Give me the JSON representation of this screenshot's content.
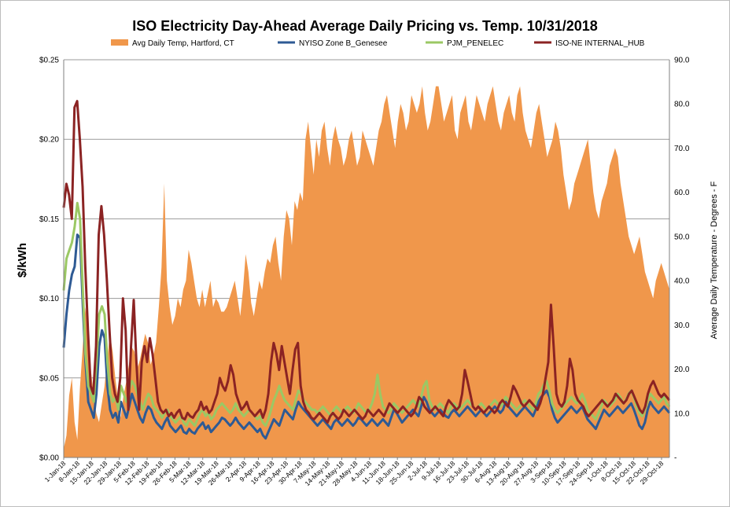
{
  "chart_data": {
    "type": "line",
    "title": "ISO Electricity Day-Ahead Average Daily Pricing vs. Temp. 10/31/2018",
    "ylabel": "$/kWh",
    "y2label": "Average Daily Temperature - Degrees - F",
    "ylim": [
      0,
      0.25
    ],
    "y2lim": [
      0,
      90
    ],
    "yticks": [
      "$0.00",
      "$0.05",
      "$0.10",
      "$0.15",
      "$0.20",
      "$0.25"
    ],
    "y2ticks": [
      "-",
      "10.0",
      "20.0",
      "30.0",
      "40.0",
      "50.0",
      "60.0",
      "70.0",
      "80.0",
      "90.0"
    ],
    "grid": true,
    "legend_position": "top",
    "xticks": [
      "1-Jan-18",
      "8-Jan-18",
      "15-Jan-18",
      "22-Jan-18",
      "29-Jan-18",
      "5-Feb-18",
      "12-Feb-18",
      "19-Feb-18",
      "26-Feb-18",
      "5-Mar-18",
      "12-Mar-18",
      "19-Mar-18",
      "26-Mar-18",
      "2-Apr-18",
      "9-Apr-18",
      "16-Apr-18",
      "23-Apr-18",
      "30-Apr-18",
      "7-May-18",
      "14-May-18",
      "21-May-18",
      "28-May-18",
      "4-Jun-18",
      "11-Jun-18",
      "18-Jun-18",
      "25-Jun-18",
      "2-Jul-18",
      "9-Jul-18",
      "16-Jul-18",
      "23-Jul-18",
      "30-Jul-18",
      "6-Aug-18",
      "13-Aug-18",
      "20-Aug-18",
      "27-Aug-18",
      "3-Sep-18",
      "10-Sep-18",
      "17-Sep-18",
      "24-Sep-18",
      "1-Oct-18",
      "8-Oct-18",
      "15-Oct-18",
      "22-Oct-18",
      "29-Oct-18"
    ],
    "series": [
      {
        "name": "Avg Daily Temp, Hartford, CT",
        "kind": "area",
        "axis": "right",
        "color": "#f0974b",
        "values": [
          2,
          5,
          14,
          18,
          8,
          4,
          16,
          25,
          34,
          30,
          20,
          14,
          10,
          8,
          12,
          16,
          22,
          28,
          24,
          18,
          13,
          9,
          14,
          17,
          21,
          25,
          24,
          20,
          22,
          25,
          28,
          26,
          21,
          23,
          26,
          34,
          43,
          62,
          40,
          34,
          30,
          32,
          36,
          34,
          38,
          40,
          47,
          44,
          40,
          36,
          34,
          38,
          34,
          37,
          40,
          34,
          36,
          35,
          33,
          33,
          34,
          36,
          38,
          40,
          36,
          32,
          38,
          46,
          42,
          35,
          32,
          36,
          40,
          38,
          42,
          45,
          44,
          48,
          50,
          44,
          40,
          50,
          56,
          54,
          48,
          58,
          56,
          60,
          58,
          72,
          76,
          70,
          64,
          72,
          68,
          74,
          76,
          70,
          66,
          72,
          75,
          72,
          70,
          66,
          68,
          72,
          74,
          70,
          66,
          68,
          74,
          72,
          70,
          68,
          66,
          70,
          74,
          76,
          80,
          82,
          78,
          74,
          70,
          76,
          80,
          78,
          74,
          76,
          82,
          80,
          78,
          80,
          84,
          78,
          74,
          76,
          80,
          84,
          84,
          80,
          76,
          78,
          80,
          82,
          74,
          72,
          78,
          80,
          82,
          76,
          74,
          78,
          82,
          80,
          78,
          76,
          80,
          82,
          84,
          80,
          76,
          74,
          78,
          80,
          82,
          78,
          76,
          82,
          84,
          78,
          74,
          72,
          70,
          74,
          78,
          80,
          76,
          72,
          68,
          70,
          72,
          76,
          74,
          70,
          64,
          60,
          56,
          58,
          62,
          64,
          66,
          68,
          70,
          72,
          66,
          60,
          56,
          54,
          58,
          60,
          62,
          66,
          68,
          70,
          68,
          62,
          58,
          54,
          50,
          48,
          46,
          48,
          50,
          46,
          42,
          40,
          38,
          36,
          40,
          42,
          44,
          42,
          40,
          38
        ]
      },
      {
        "name": "NYISO Zone B_Genesee",
        "kind": "line",
        "axis": "left",
        "color": "#2e5a94",
        "values": [
          0.069,
          0.09,
          0.105,
          0.115,
          0.12,
          0.14,
          0.138,
          0.095,
          0.06,
          0.035,
          0.03,
          0.025,
          0.04,
          0.07,
          0.08,
          0.075,
          0.045,
          0.03,
          0.025,
          0.028,
          0.022,
          0.035,
          0.03,
          0.025,
          0.032,
          0.04,
          0.035,
          0.03,
          0.025,
          0.022,
          0.028,
          0.032,
          0.03,
          0.025,
          0.022,
          0.02,
          0.018,
          0.022,
          0.025,
          0.02,
          0.018,
          0.016,
          0.018,
          0.02,
          0.016,
          0.015,
          0.018,
          0.016,
          0.015,
          0.018,
          0.02,
          0.022,
          0.018,
          0.02,
          0.016,
          0.018,
          0.02,
          0.022,
          0.025,
          0.024,
          0.022,
          0.02,
          0.022,
          0.025,
          0.022,
          0.02,
          0.018,
          0.02,
          0.022,
          0.02,
          0.018,
          0.016,
          0.018,
          0.014,
          0.012,
          0.016,
          0.02,
          0.024,
          0.022,
          0.02,
          0.025,
          0.03,
          0.028,
          0.026,
          0.024,
          0.03,
          0.035,
          0.032,
          0.03,
          0.028,
          0.026,
          0.024,
          0.022,
          0.02,
          0.022,
          0.024,
          0.022,
          0.02,
          0.018,
          0.022,
          0.024,
          0.022,
          0.02,
          0.022,
          0.024,
          0.022,
          0.02,
          0.022,
          0.025,
          0.024,
          0.022,
          0.02,
          0.022,
          0.024,
          0.022,
          0.02,
          0.022,
          0.024,
          0.022,
          0.02,
          0.025,
          0.03,
          0.028,
          0.025,
          0.022,
          0.024,
          0.026,
          0.028,
          0.03,
          0.028,
          0.026,
          0.032,
          0.038,
          0.035,
          0.03,
          0.028,
          0.026,
          0.028,
          0.03,
          0.028,
          0.026,
          0.025,
          0.028,
          0.03,
          0.028,
          0.026,
          0.028,
          0.03,
          0.032,
          0.03,
          0.028,
          0.026,
          0.028,
          0.03,
          0.028,
          0.026,
          0.028,
          0.03,
          0.032,
          0.03,
          0.028,
          0.03,
          0.035,
          0.032,
          0.03,
          0.028,
          0.026,
          0.028,
          0.03,
          0.032,
          0.03,
          0.028,
          0.026,
          0.03,
          0.035,
          0.038,
          0.04,
          0.042,
          0.038,
          0.03,
          0.025,
          0.022,
          0.024,
          0.026,
          0.028,
          0.03,
          0.032,
          0.03,
          0.028,
          0.03,
          0.032,
          0.028,
          0.024,
          0.022,
          0.02,
          0.018,
          0.022,
          0.026,
          0.03,
          0.028,
          0.026,
          0.028,
          0.03,
          0.032,
          0.03,
          0.028,
          0.03,
          0.032,
          0.034,
          0.03,
          0.025,
          0.02,
          0.018,
          0.022,
          0.03,
          0.035,
          0.032,
          0.03,
          0.028,
          0.03,
          0.032,
          0.03,
          0.028
        ]
      },
      {
        "name": "PJM_PENELEC",
        "kind": "line",
        "axis": "left",
        "color": "#9bc864",
        "values": [
          0.105,
          0.125,
          0.13,
          0.135,
          0.145,
          0.16,
          0.15,
          0.105,
          0.065,
          0.045,
          0.04,
          0.035,
          0.06,
          0.09,
          0.095,
          0.09,
          0.06,
          0.04,
          0.035,
          0.038,
          0.03,
          0.045,
          0.04,
          0.035,
          0.042,
          0.048,
          0.045,
          0.04,
          0.035,
          0.03,
          0.036,
          0.04,
          0.038,
          0.032,
          0.03,
          0.028,
          0.025,
          0.028,
          0.03,
          0.026,
          0.024,
          0.022,
          0.024,
          0.026,
          0.022,
          0.02,
          0.024,
          0.022,
          0.02,
          0.024,
          0.028,
          0.03,
          0.026,
          0.028,
          0.024,
          0.026,
          0.03,
          0.032,
          0.034,
          0.032,
          0.03,
          0.028,
          0.03,
          0.034,
          0.03,
          0.028,
          0.026,
          0.028,
          0.03,
          0.028,
          0.026,
          0.024,
          0.026,
          0.022,
          0.02,
          0.024,
          0.03,
          0.036,
          0.04,
          0.045,
          0.04,
          0.036,
          0.034,
          0.032,
          0.03,
          0.036,
          0.042,
          0.04,
          0.036,
          0.034,
          0.032,
          0.03,
          0.03,
          0.028,
          0.03,
          0.032,
          0.03,
          0.028,
          0.026,
          0.03,
          0.032,
          0.03,
          0.028,
          0.03,
          0.032,
          0.03,
          0.028,
          0.03,
          0.034,
          0.032,
          0.03,
          0.028,
          0.03,
          0.034,
          0.04,
          0.052,
          0.04,
          0.032,
          0.03,
          0.028,
          0.03,
          0.034,
          0.032,
          0.03,
          0.028,
          0.03,
          0.032,
          0.034,
          0.036,
          0.034,
          0.032,
          0.038,
          0.045,
          0.048,
          0.036,
          0.032,
          0.03,
          0.032,
          0.034,
          0.032,
          0.03,
          0.028,
          0.032,
          0.034,
          0.032,
          0.03,
          0.032,
          0.034,
          0.036,
          0.034,
          0.032,
          0.03,
          0.032,
          0.034,
          0.032,
          0.03,
          0.032,
          0.034,
          0.036,
          0.034,
          0.032,
          0.034,
          0.038,
          0.036,
          0.034,
          0.032,
          0.03,
          0.032,
          0.034,
          0.036,
          0.034,
          0.032,
          0.03,
          0.034,
          0.04,
          0.042,
          0.046,
          0.048,
          0.042,
          0.034,
          0.03,
          0.028,
          0.03,
          0.032,
          0.034,
          0.036,
          0.038,
          0.036,
          0.034,
          0.036,
          0.04,
          0.036,
          0.03,
          0.028,
          0.026,
          0.024,
          0.028,
          0.032,
          0.036,
          0.034,
          0.032,
          0.034,
          0.036,
          0.04,
          0.038,
          0.034,
          0.036,
          0.04,
          0.042,
          0.038,
          0.032,
          0.028,
          0.026,
          0.03,
          0.036,
          0.04,
          0.038,
          0.036,
          0.034,
          0.036,
          0.038,
          0.034,
          0.032
        ]
      },
      {
        "name": "ISO-NE INTERNAL_HUB",
        "kind": "line",
        "axis": "left",
        "color": "#8b2323",
        "values": [
          0.157,
          0.172,
          0.165,
          0.15,
          0.22,
          0.224,
          0.2,
          0.17,
          0.12,
          0.08,
          0.045,
          0.04,
          0.07,
          0.14,
          0.158,
          0.14,
          0.112,
          0.08,
          0.05,
          0.04,
          0.035,
          0.05,
          0.1,
          0.08,
          0.03,
          0.07,
          0.099,
          0.06,
          0.03,
          0.06,
          0.07,
          0.06,
          0.075,
          0.065,
          0.05,
          0.035,
          0.03,
          0.028,
          0.03,
          0.026,
          0.028,
          0.025,
          0.028,
          0.03,
          0.025,
          0.024,
          0.028,
          0.026,
          0.025,
          0.028,
          0.03,
          0.035,
          0.03,
          0.032,
          0.028,
          0.03,
          0.035,
          0.04,
          0.05,
          0.045,
          0.042,
          0.048,
          0.058,
          0.052,
          0.04,
          0.035,
          0.03,
          0.032,
          0.035,
          0.03,
          0.028,
          0.026,
          0.028,
          0.03,
          0.025,
          0.03,
          0.04,
          0.06,
          0.072,
          0.065,
          0.055,
          0.07,
          0.06,
          0.05,
          0.04,
          0.055,
          0.068,
          0.072,
          0.045,
          0.035,
          0.03,
          0.028,
          0.025,
          0.024,
          0.026,
          0.028,
          0.026,
          0.024,
          0.022,
          0.026,
          0.028,
          0.026,
          0.024,
          0.026,
          0.03,
          0.028,
          0.026,
          0.028,
          0.03,
          0.028,
          0.026,
          0.024,
          0.026,
          0.03,
          0.028,
          0.026,
          0.028,
          0.03,
          0.028,
          0.026,
          0.03,
          0.034,
          0.032,
          0.03,
          0.028,
          0.03,
          0.032,
          0.03,
          0.028,
          0.026,
          0.028,
          0.032,
          0.038,
          0.036,
          0.032,
          0.03,
          0.028,
          0.03,
          0.032,
          0.03,
          0.028,
          0.026,
          0.032,
          0.036,
          0.034,
          0.032,
          0.03,
          0.032,
          0.04,
          0.055,
          0.048,
          0.04,
          0.032,
          0.03,
          0.032,
          0.03,
          0.028,
          0.03,
          0.032,
          0.03,
          0.028,
          0.03,
          0.034,
          0.036,
          0.034,
          0.032,
          0.038,
          0.045,
          0.042,
          0.038,
          0.034,
          0.032,
          0.034,
          0.036,
          0.034,
          0.032,
          0.03,
          0.034,
          0.04,
          0.05,
          0.06,
          0.096,
          0.07,
          0.04,
          0.034,
          0.032,
          0.035,
          0.045,
          0.062,
          0.055,
          0.04,
          0.036,
          0.034,
          0.032,
          0.028,
          0.026,
          0.028,
          0.03,
          0.032,
          0.034,
          0.036,
          0.034,
          0.032,
          0.034,
          0.036,
          0.04,
          0.038,
          0.036,
          0.034,
          0.036,
          0.04,
          0.042,
          0.038,
          0.034,
          0.03,
          0.028,
          0.032,
          0.04,
          0.045,
          0.048,
          0.044,
          0.04,
          0.038,
          0.04,
          0.038,
          0.036
        ]
      }
    ]
  }
}
